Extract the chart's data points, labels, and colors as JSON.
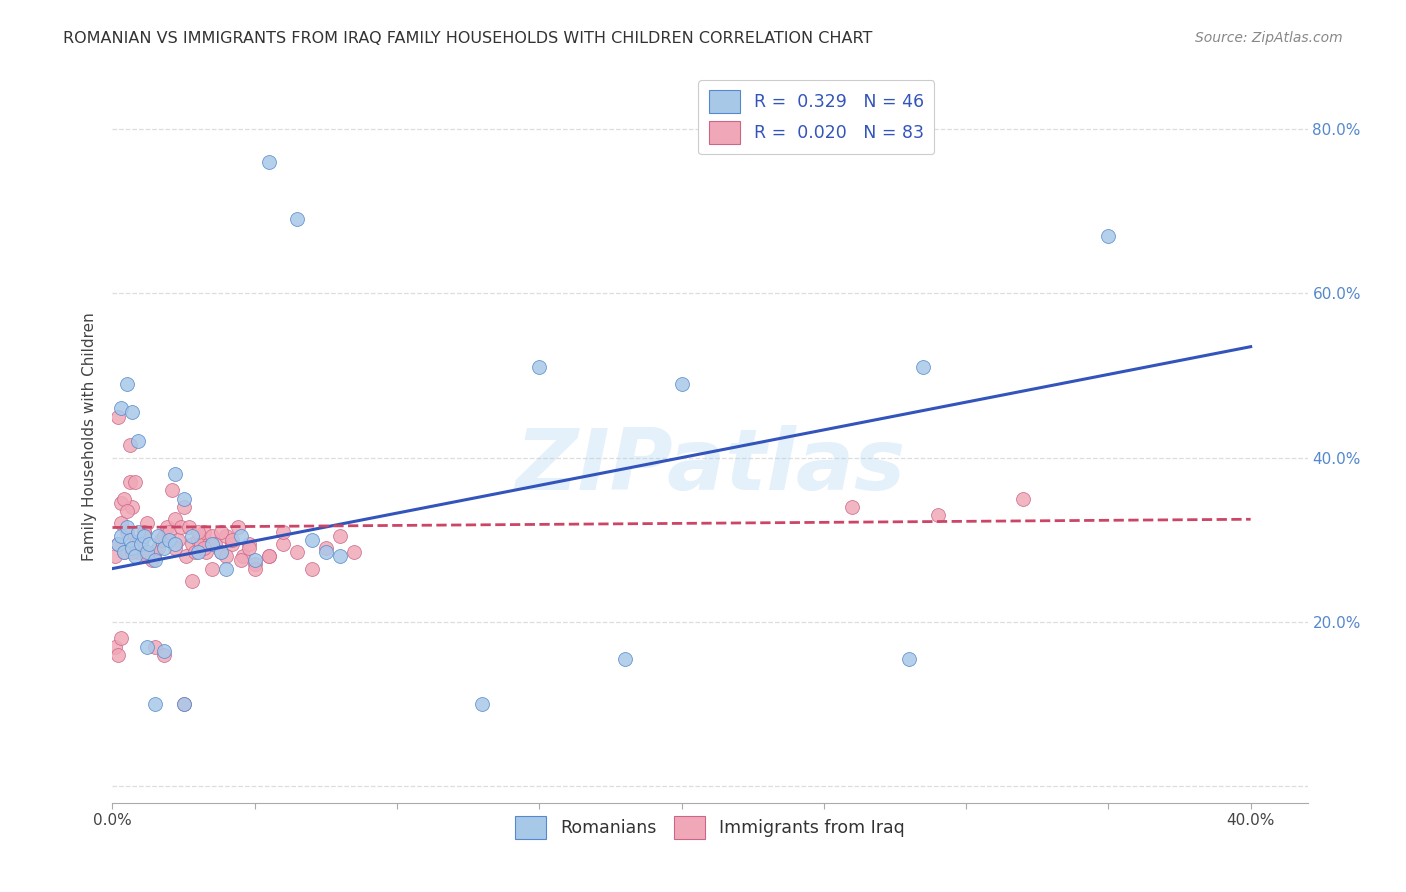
{
  "title": "ROMANIAN VS IMMIGRANTS FROM IRAQ FAMILY HOUSEHOLDS WITH CHILDREN CORRELATION CHART",
  "source": "Source: ZipAtlas.com",
  "ylabel": "Family Households with Children",
  "watermark": "ZIPatlas",
  "xlim": [
    0.0,
    0.42
  ],
  "ylim": [
    -0.02,
    0.87
  ],
  "xtick_positions": [
    0.0,
    0.05,
    0.1,
    0.15,
    0.2,
    0.25,
    0.3,
    0.35,
    0.4
  ],
  "xtick_labels": [
    "0.0%",
    "",
    "",
    "",
    "",
    "",
    "",
    "",
    "40.0%"
  ],
  "ytick_positions": [
    0.0,
    0.2,
    0.4,
    0.6,
    0.8
  ],
  "ytick_labels": [
    "",
    "20.0%",
    "40.0%",
    "60.0%",
    "80.0%"
  ],
  "romanian_face_color": "#a8c8e8",
  "romanian_edge_color": "#5588cc",
  "iraqi_face_color": "#f0a8b8",
  "iraqi_edge_color": "#cc6688",
  "romanian_line_color": "#3355bb",
  "iraqi_line_color": "#cc4466",
  "grid_color": "#dddddd",
  "rom_line_x0": 0.0,
  "rom_line_y0": 0.265,
  "rom_line_x1": 0.4,
  "rom_line_y1": 0.535,
  "irq_line_x0": 0.0,
  "irq_line_y0": 0.315,
  "irq_line_x1": 0.4,
  "irq_line_y1": 0.325,
  "romanians_x": [
    0.002,
    0.003,
    0.004,
    0.005,
    0.006,
    0.007,
    0.008,
    0.009,
    0.01,
    0.011,
    0.012,
    0.013,
    0.015,
    0.016,
    0.018,
    0.02,
    0.022,
    0.025,
    0.028,
    0.03,
    0.035,
    0.038,
    0.04,
    0.045,
    0.05,
    0.055,
    0.065,
    0.07,
    0.075,
    0.08,
    0.003,
    0.005,
    0.007,
    0.009,
    0.012,
    0.015,
    0.018,
    0.022,
    0.025,
    0.13,
    0.15,
    0.18,
    0.2,
    0.28,
    0.285,
    0.35
  ],
  "romanians_y": [
    0.295,
    0.305,
    0.285,
    0.315,
    0.3,
    0.29,
    0.28,
    0.31,
    0.295,
    0.305,
    0.285,
    0.295,
    0.275,
    0.305,
    0.29,
    0.3,
    0.38,
    0.35,
    0.305,
    0.285,
    0.295,
    0.285,
    0.265,
    0.305,
    0.275,
    0.76,
    0.69,
    0.3,
    0.285,
    0.28,
    0.46,
    0.49,
    0.455,
    0.42,
    0.17,
    0.1,
    0.165,
    0.295,
    0.1,
    0.1,
    0.51,
    0.155,
    0.49,
    0.155,
    0.51,
    0.67
  ],
  "iraqis_x": [
    0.001,
    0.002,
    0.003,
    0.004,
    0.005,
    0.006,
    0.007,
    0.008,
    0.009,
    0.01,
    0.011,
    0.012,
    0.013,
    0.014,
    0.015,
    0.016,
    0.017,
    0.018,
    0.019,
    0.02,
    0.021,
    0.022,
    0.023,
    0.024,
    0.025,
    0.026,
    0.027,
    0.028,
    0.029,
    0.03,
    0.031,
    0.032,
    0.033,
    0.034,
    0.035,
    0.036,
    0.038,
    0.04,
    0.042,
    0.044,
    0.046,
    0.048,
    0.05,
    0.055,
    0.06,
    0.065,
    0.07,
    0.075,
    0.08,
    0.085,
    0.002,
    0.004,
    0.006,
    0.008,
    0.01,
    0.012,
    0.015,
    0.018,
    0.022,
    0.025,
    0.028,
    0.03,
    0.032,
    0.035,
    0.038,
    0.04,
    0.042,
    0.045,
    0.048,
    0.05,
    0.055,
    0.06,
    0.003,
    0.005,
    0.007,
    0.009,
    0.011,
    0.26,
    0.29,
    0.32,
    0.001,
    0.002,
    0.003
  ],
  "iraqis_y": [
    0.28,
    0.295,
    0.345,
    0.285,
    0.31,
    0.37,
    0.34,
    0.295,
    0.285,
    0.3,
    0.31,
    0.32,
    0.28,
    0.275,
    0.285,
    0.29,
    0.3,
    0.305,
    0.315,
    0.31,
    0.36,
    0.325,
    0.3,
    0.315,
    0.34,
    0.28,
    0.315,
    0.295,
    0.285,
    0.3,
    0.295,
    0.31,
    0.285,
    0.295,
    0.305,
    0.295,
    0.285,
    0.305,
    0.295,
    0.315,
    0.28,
    0.295,
    0.27,
    0.28,
    0.295,
    0.285,
    0.265,
    0.29,
    0.305,
    0.285,
    0.45,
    0.35,
    0.415,
    0.37,
    0.295,
    0.28,
    0.17,
    0.16,
    0.29,
    0.1,
    0.25,
    0.31,
    0.29,
    0.265,
    0.31,
    0.28,
    0.3,
    0.275,
    0.29,
    0.265,
    0.28,
    0.31,
    0.32,
    0.335,
    0.285,
    0.295,
    0.31,
    0.34,
    0.33,
    0.35,
    0.17,
    0.16,
    0.18
  ]
}
